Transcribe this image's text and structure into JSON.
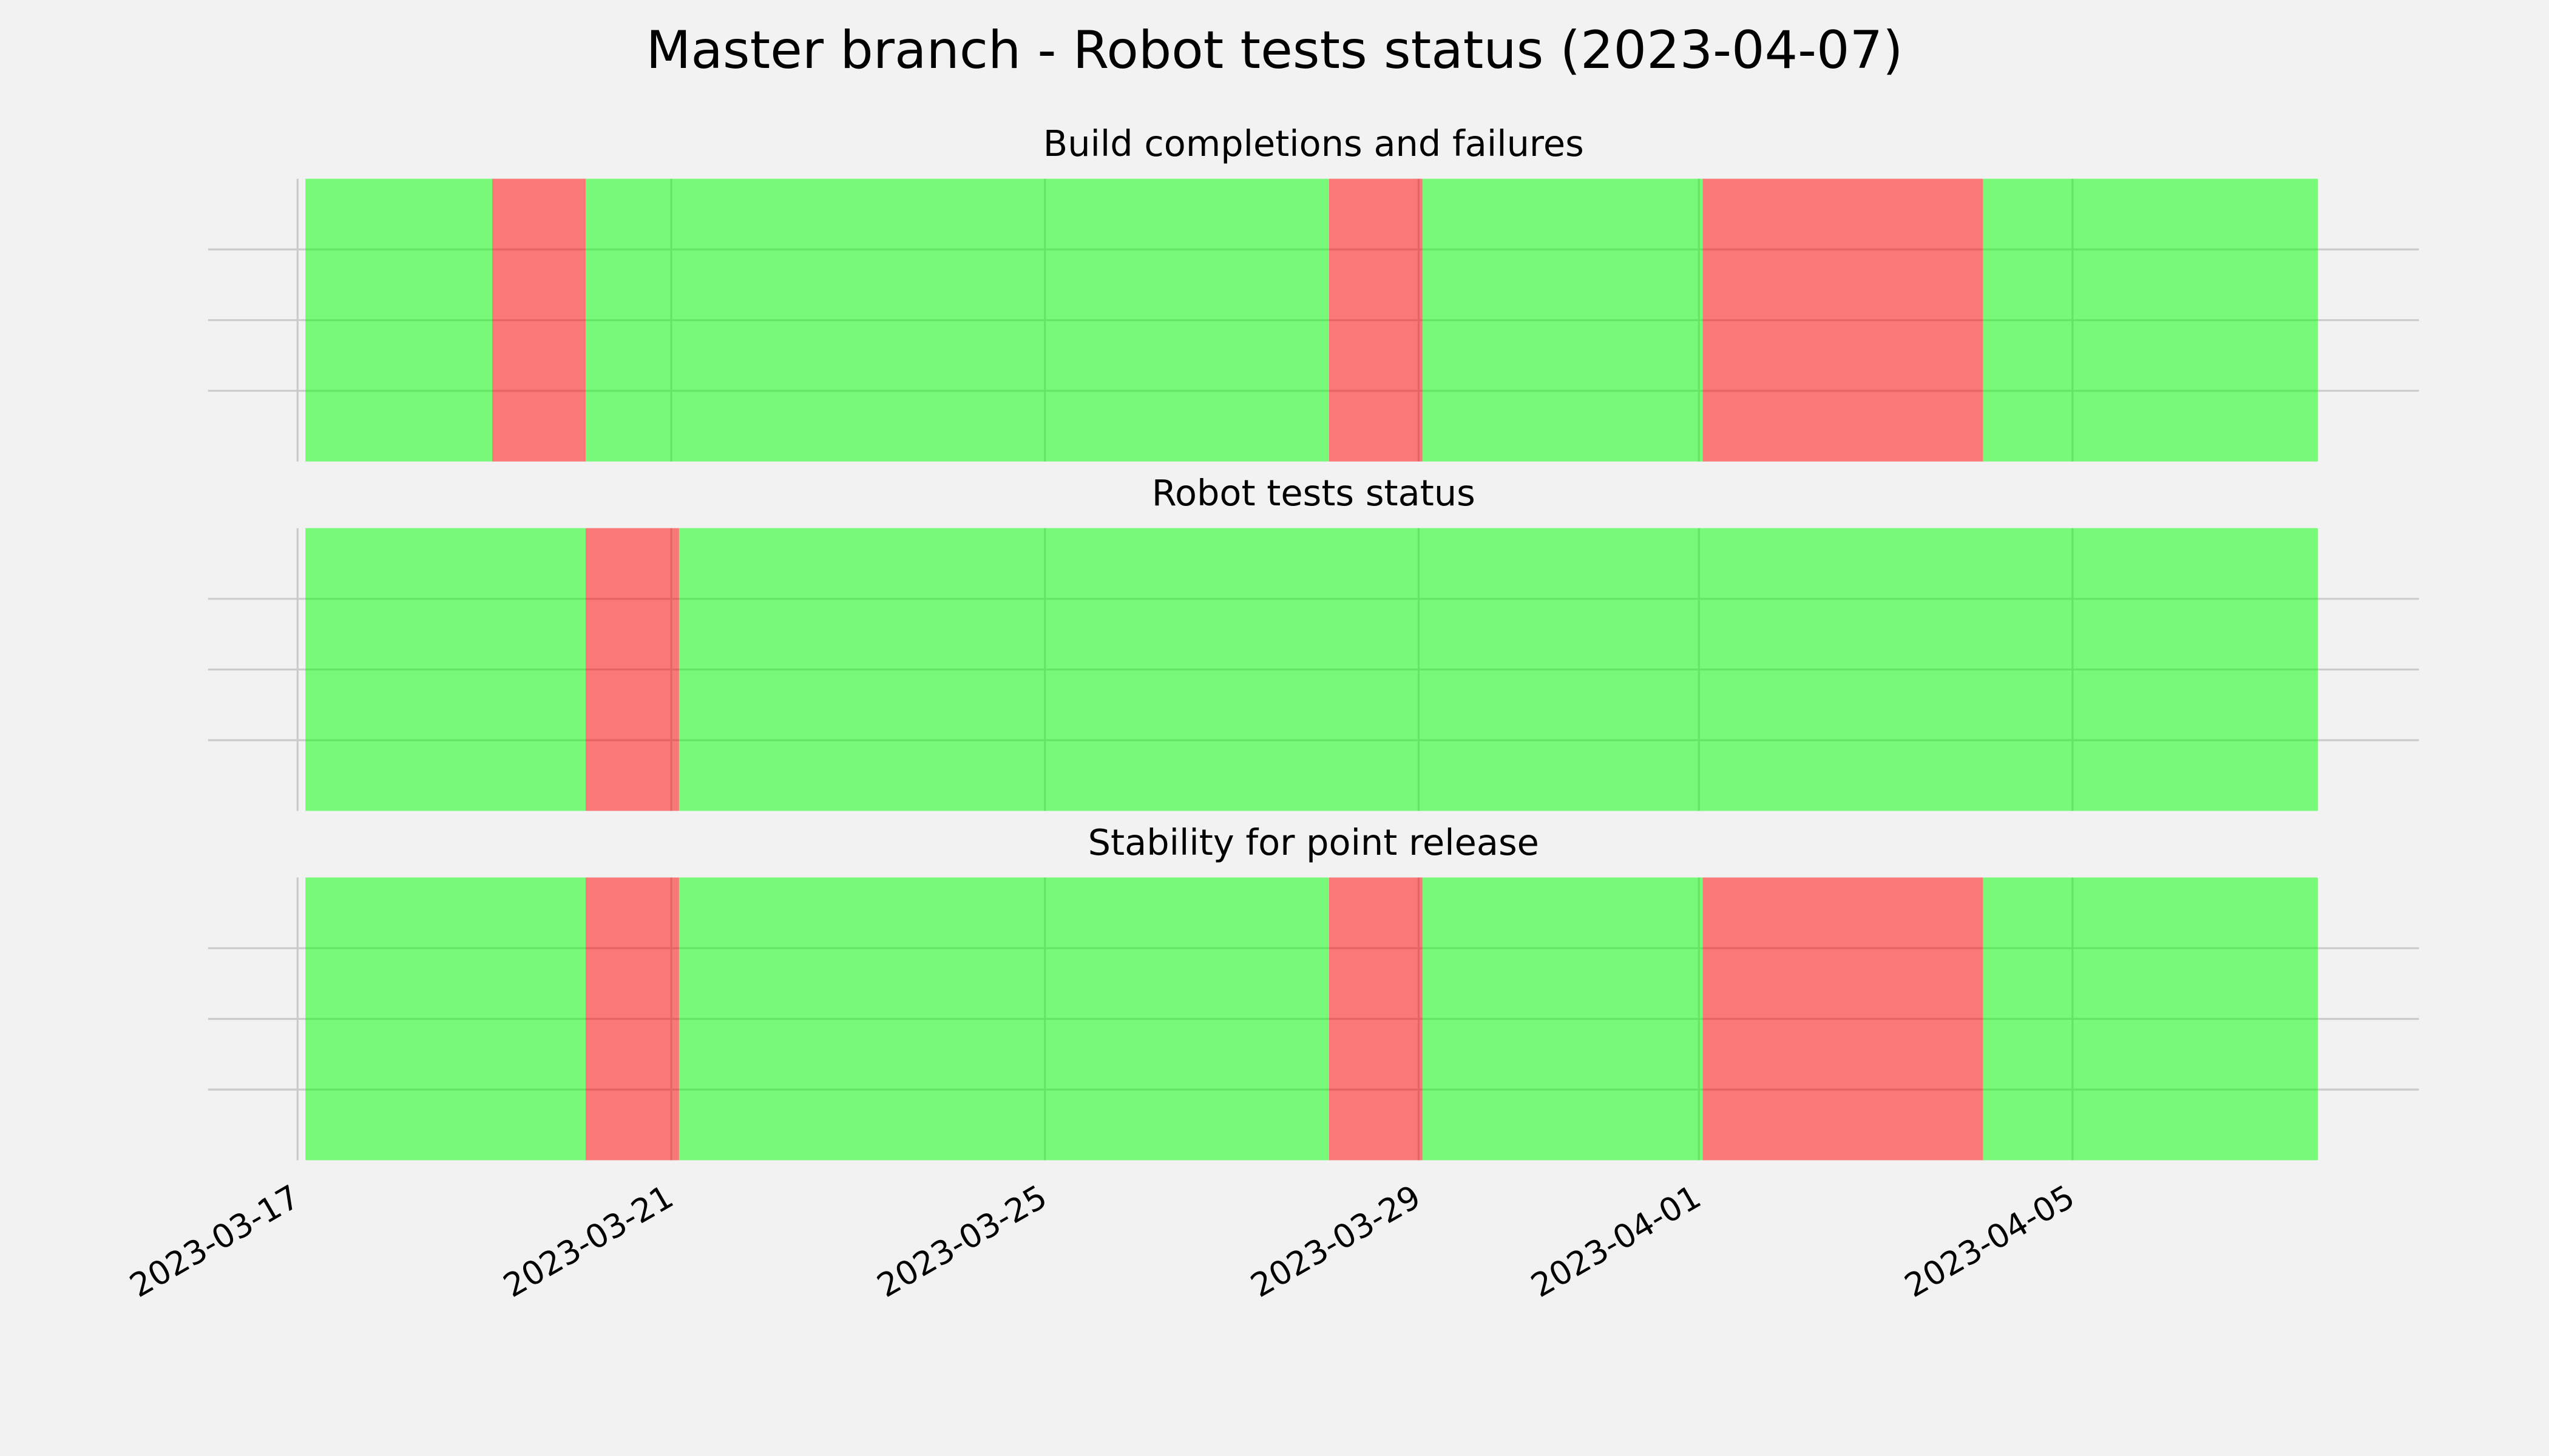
{
  "title": "Master branch - Robot tests status (2023-04-07)",
  "chart_data": [
    {
      "type": "timeline",
      "title": "Build completions and failures",
      "xlim": [
        "2023-03-16T01:00",
        "2023-04-08T17:00"
      ],
      "ylim": [
        0,
        1
      ],
      "yticks": [
        0.25,
        0.5,
        0.75
      ],
      "xticks": [
        "2023-03-17",
        "2023-03-21",
        "2023-03-25",
        "2023-03-29",
        "2023-04-01",
        "2023-04-05"
      ],
      "grid": true,
      "alpha": 0.5,
      "segments": [
        {
          "start": "2023-03-17T02:00",
          "end": "2023-03-19T02:00",
          "color": "#00ff00"
        },
        {
          "start": "2023-03-19T02:00",
          "end": "2023-03-20T02:00",
          "color": "#ff0000"
        },
        {
          "start": "2023-03-20T02:00",
          "end": "2023-03-28T01:00",
          "color": "#00ff00"
        },
        {
          "start": "2023-03-28T01:00",
          "end": "2023-03-29T01:00",
          "color": "#ff0000"
        },
        {
          "start": "2023-03-29T01:00",
          "end": "2023-04-01T01:00",
          "color": "#00ff00"
        },
        {
          "start": "2023-04-01T01:00",
          "end": "2023-04-04T01:00",
          "color": "#ff0000"
        },
        {
          "start": "2023-04-04T01:00",
          "end": "2023-04-07T15:00",
          "color": "#00ff00"
        }
      ]
    },
    {
      "type": "timeline",
      "title": "Robot tests status",
      "xlim": [
        "2023-03-16T01:00",
        "2023-04-08T17:00"
      ],
      "ylim": [
        0,
        1
      ],
      "yticks": [
        0.25,
        0.5,
        0.75
      ],
      "xticks": [
        "2023-03-17",
        "2023-03-21",
        "2023-03-25",
        "2023-03-29",
        "2023-04-01",
        "2023-04-05"
      ],
      "grid": true,
      "alpha": 0.5,
      "segments": [
        {
          "start": "2023-03-17T02:00",
          "end": "2023-03-20T02:00",
          "color": "#00ff00"
        },
        {
          "start": "2023-03-20T02:00",
          "end": "2023-03-21T02:00",
          "color": "#ff0000"
        },
        {
          "start": "2023-03-21T02:00",
          "end": "2023-04-07T15:00",
          "color": "#00ff00"
        }
      ]
    },
    {
      "type": "timeline",
      "title": "Stability for point release",
      "xlim": [
        "2023-03-16T01:00",
        "2023-04-08T17:00"
      ],
      "ylim": [
        0,
        1
      ],
      "yticks": [
        0.25,
        0.5,
        0.75
      ],
      "xticks": [
        "2023-03-17",
        "2023-03-21",
        "2023-03-25",
        "2023-03-29",
        "2023-04-01",
        "2023-04-05"
      ],
      "grid": true,
      "alpha": 0.5,
      "segments": [
        {
          "start": "2023-03-17T02:00",
          "end": "2023-03-20T02:00",
          "color": "#00ff00"
        },
        {
          "start": "2023-03-20T02:00",
          "end": "2023-03-21T02:00",
          "color": "#ff0000"
        },
        {
          "start": "2023-03-21T02:00",
          "end": "2023-03-28T01:00",
          "color": "#00ff00"
        },
        {
          "start": "2023-03-28T01:00",
          "end": "2023-03-29T01:00",
          "color": "#ff0000"
        },
        {
          "start": "2023-03-29T01:00",
          "end": "2023-04-01T01:00",
          "color": "#00ff00"
        },
        {
          "start": "2023-04-01T01:00",
          "end": "2023-04-04T01:00",
          "color": "#ff0000"
        },
        {
          "start": "2023-04-04T01:00",
          "end": "2023-04-07T15:00",
          "color": "#00ff00"
        }
      ]
    }
  ]
}
